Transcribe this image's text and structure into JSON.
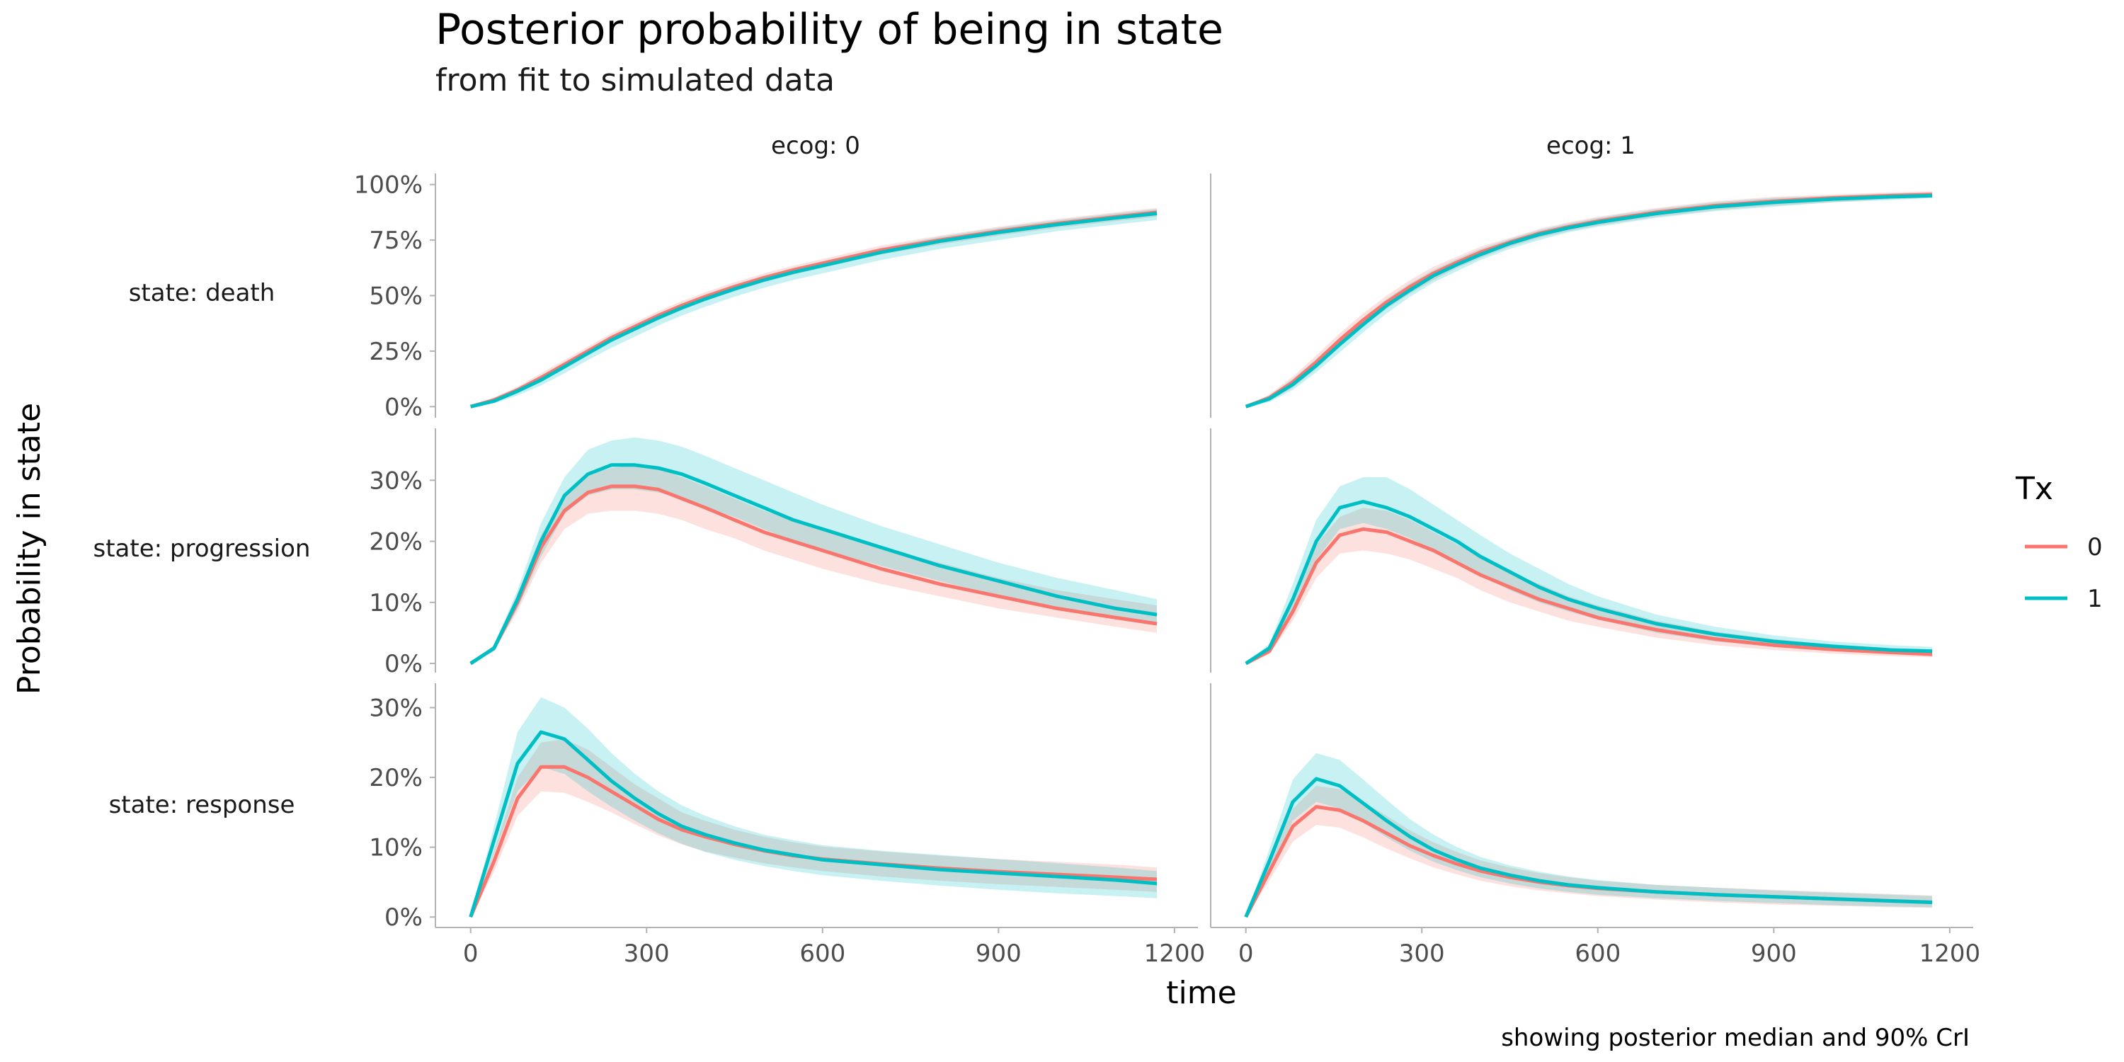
{
  "chart_data": {
    "type": "line",
    "title": "Posterior probability of being in state",
    "subtitle": "from fit to simulated data",
    "xlabel": "time",
    "ylabel": "Probability in state",
    "caption": "showing posterior median and 90% CrI",
    "xlim": [
      -60,
      1240
    ],
    "x_ticks": [
      0,
      300,
      600,
      900,
      1200
    ],
    "x_tick_labels": [
      "0",
      "300",
      "600",
      "900",
      "1200"
    ],
    "facet_cols": [
      "ecog: 0",
      "ecog: 1"
    ],
    "facet_rows": [
      {
        "label": "state: death",
        "ylim": [
          -0.05,
          1.05
        ],
        "y_ticks": [
          0,
          0.25,
          0.5,
          0.75,
          1.0
        ],
        "y_tick_labels": [
          "0%",
          "25%",
          "50%",
          "75%",
          "100%"
        ]
      },
      {
        "label": "state: progression",
        "ylim": [
          -0.015,
          0.385
        ],
        "y_ticks": [
          0,
          0.1,
          0.2,
          0.3
        ],
        "y_tick_labels": [
          "0%",
          "10%",
          "20%",
          "30%"
        ]
      },
      {
        "label": "state: response",
        "ylim": [
          -0.015,
          0.335
        ],
        "y_ticks": [
          0,
          0.1,
          0.2,
          0.3
        ],
        "y_tick_labels": [
          "0%",
          "10%",
          "20%",
          "30%"
        ]
      }
    ],
    "legend": {
      "title": "Tx",
      "position": "right",
      "entries": [
        {
          "label": "0",
          "color": "#F8766D"
        },
        {
          "label": "1",
          "color": "#00BFC4"
        }
      ]
    },
    "x": [
      0,
      40,
      80,
      120,
      160,
      200,
      240,
      280,
      320,
      360,
      400,
      450,
      500,
      550,
      600,
      700,
      800,
      900,
      1000,
      1100,
      1170
    ],
    "panels": [
      {
        "row": 0,
        "col": 0,
        "series": [
          {
            "tx": "0",
            "median": [
              0,
              0.03,
              0.075,
              0.13,
              0.19,
              0.25,
              0.31,
              0.36,
              0.41,
              0.455,
              0.495,
              0.54,
              0.58,
              0.615,
              0.645,
              0.705,
              0.75,
              0.79,
              0.825,
              0.855,
              0.875
            ],
            "lower": [
              0,
              0.02,
              0.06,
              0.11,
              0.17,
              0.23,
              0.29,
              0.34,
              0.39,
              0.435,
              0.475,
              0.52,
              0.56,
              0.595,
              0.625,
              0.685,
              0.73,
              0.77,
              0.805,
              0.835,
              0.855
            ],
            "upper": [
              0,
              0.04,
              0.09,
              0.15,
              0.21,
              0.27,
              0.33,
              0.38,
              0.43,
              0.475,
              0.515,
              0.56,
              0.6,
              0.635,
              0.665,
              0.725,
              0.77,
              0.81,
              0.845,
              0.875,
              0.895
            ]
          },
          {
            "tx": "1",
            "median": [
              0,
              0.025,
              0.07,
              0.12,
              0.18,
              0.24,
              0.3,
              0.35,
              0.4,
              0.445,
              0.485,
              0.53,
              0.57,
              0.605,
              0.635,
              0.695,
              0.745,
              0.785,
              0.82,
              0.85,
              0.87
            ],
            "lower": [
              0,
              0.015,
              0.05,
              0.095,
              0.15,
              0.21,
              0.265,
              0.315,
              0.365,
              0.41,
              0.45,
              0.495,
              0.535,
              0.57,
              0.6,
              0.66,
              0.71,
              0.75,
              0.79,
              0.82,
              0.84
            ],
            "upper": [
              0,
              0.035,
              0.085,
              0.14,
              0.2,
              0.26,
              0.32,
              0.37,
              0.42,
              0.465,
              0.505,
              0.55,
              0.59,
              0.625,
              0.655,
              0.715,
              0.765,
              0.805,
              0.84,
              0.87,
              0.89
            ]
          }
        ]
      },
      {
        "row": 0,
        "col": 1,
        "series": [
          {
            "tx": "0",
            "median": [
              0,
              0.04,
              0.11,
              0.2,
              0.3,
              0.39,
              0.47,
              0.54,
              0.6,
              0.65,
              0.695,
              0.74,
              0.78,
              0.81,
              0.835,
              0.875,
              0.905,
              0.925,
              0.94,
              0.95,
              0.955
            ],
            "lower": [
              0,
              0.025,
              0.085,
              0.17,
              0.27,
              0.36,
              0.44,
              0.51,
              0.57,
              0.625,
              0.67,
              0.72,
              0.76,
              0.79,
              0.815,
              0.855,
              0.885,
              0.905,
              0.92,
              0.935,
              0.94
            ],
            "upper": [
              0,
              0.055,
              0.135,
              0.23,
              0.33,
              0.42,
              0.5,
              0.57,
              0.63,
              0.675,
              0.72,
              0.76,
              0.8,
              0.83,
              0.855,
              0.895,
              0.925,
              0.945,
              0.955,
              0.965,
              0.97
            ]
          },
          {
            "tx": "1",
            "median": [
              0,
              0.035,
              0.1,
              0.185,
              0.28,
              0.37,
              0.455,
              0.525,
              0.59,
              0.64,
              0.685,
              0.735,
              0.775,
              0.805,
              0.83,
              0.87,
              0.9,
              0.92,
              0.935,
              0.945,
              0.95
            ],
            "lower": [
              0,
              0.02,
              0.075,
              0.155,
              0.245,
              0.335,
              0.42,
              0.495,
              0.56,
              0.61,
              0.66,
              0.71,
              0.75,
              0.785,
              0.81,
              0.85,
              0.88,
              0.9,
              0.92,
              0.93,
              0.94
            ],
            "upper": [
              0,
              0.05,
              0.125,
              0.215,
              0.31,
              0.4,
              0.485,
              0.555,
              0.615,
              0.665,
              0.71,
              0.755,
              0.795,
              0.825,
              0.85,
              0.89,
              0.92,
              0.94,
              0.95,
              0.96,
              0.965
            ]
          }
        ]
      },
      {
        "row": 1,
        "col": 0,
        "series": [
          {
            "tx": "0",
            "median": [
              0,
              0.025,
              0.1,
              0.19,
              0.25,
              0.28,
              0.29,
              0.29,
              0.285,
              0.27,
              0.255,
              0.235,
              0.215,
              0.2,
              0.185,
              0.155,
              0.13,
              0.11,
              0.09,
              0.075,
              0.065
            ],
            "lower": [
              0,
              0.02,
              0.085,
              0.165,
              0.22,
              0.245,
              0.25,
              0.25,
              0.245,
              0.235,
              0.22,
              0.205,
              0.185,
              0.17,
              0.155,
              0.13,
              0.11,
              0.09,
              0.075,
              0.06,
              0.05
            ],
            "upper": [
              0,
              0.03,
              0.115,
              0.21,
              0.275,
              0.31,
              0.32,
              0.325,
              0.32,
              0.305,
              0.29,
              0.27,
              0.25,
              0.235,
              0.22,
              0.19,
              0.165,
              0.14,
              0.12,
              0.105,
              0.095
            ]
          },
          {
            "tx": "1",
            "median": [
              0,
              0.025,
              0.105,
              0.2,
              0.275,
              0.31,
              0.325,
              0.325,
              0.32,
              0.31,
              0.295,
              0.275,
              0.255,
              0.235,
              0.22,
              0.19,
              0.16,
              0.135,
              0.11,
              0.09,
              0.08
            ],
            "lower": [
              0,
              0.02,
              0.09,
              0.175,
              0.245,
              0.275,
              0.285,
              0.285,
              0.28,
              0.27,
              0.255,
              0.24,
              0.22,
              0.2,
              0.185,
              0.16,
              0.135,
              0.11,
              0.09,
              0.075,
              0.065
            ],
            "upper": [
              0,
              0.03,
              0.12,
              0.23,
              0.305,
              0.35,
              0.365,
              0.37,
              0.365,
              0.355,
              0.34,
              0.32,
              0.3,
              0.28,
              0.26,
              0.225,
              0.195,
              0.165,
              0.14,
              0.12,
              0.105
            ]
          }
        ]
      },
      {
        "row": 1,
        "col": 1,
        "series": [
          {
            "tx": "0",
            "median": [
              0,
              0.02,
              0.085,
              0.165,
              0.21,
              0.22,
              0.215,
              0.2,
              0.185,
              0.165,
              0.145,
              0.125,
              0.105,
              0.09,
              0.075,
              0.055,
              0.04,
              0.03,
              0.023,
              0.018,
              0.015
            ],
            "lower": [
              0,
              0.015,
              0.07,
              0.14,
              0.18,
              0.185,
              0.18,
              0.17,
              0.155,
              0.14,
              0.12,
              0.1,
              0.085,
              0.07,
              0.06,
              0.042,
              0.03,
              0.022,
              0.016,
              0.012,
              0.01
            ],
            "upper": [
              0,
              0.028,
              0.105,
              0.195,
              0.24,
              0.255,
              0.25,
              0.235,
              0.215,
              0.195,
              0.175,
              0.15,
              0.13,
              0.11,
              0.095,
              0.07,
              0.052,
              0.04,
              0.031,
              0.025,
              0.022
            ]
          },
          {
            "tx": "1",
            "median": [
              0,
              0.025,
              0.105,
              0.2,
              0.255,
              0.265,
              0.255,
              0.24,
              0.22,
              0.2,
              0.175,
              0.15,
              0.125,
              0.105,
              0.09,
              0.065,
              0.048,
              0.036,
              0.028,
              0.022,
              0.02
            ],
            "lower": [
              0,
              0.02,
              0.085,
              0.17,
              0.22,
              0.23,
              0.22,
              0.205,
              0.185,
              0.165,
              0.145,
              0.12,
              0.1,
              0.085,
              0.072,
              0.05,
              0.036,
              0.027,
              0.02,
              0.016,
              0.014
            ],
            "upper": [
              0,
              0.032,
              0.13,
              0.235,
              0.29,
              0.305,
              0.305,
              0.285,
              0.26,
              0.235,
              0.21,
              0.18,
              0.155,
              0.13,
              0.11,
              0.08,
              0.06,
              0.046,
              0.036,
              0.03,
              0.027
            ]
          }
        ]
      },
      {
        "row": 2,
        "col": 0,
        "series": [
          {
            "tx": "0",
            "median": [
              0,
              0.08,
              0.17,
              0.215,
              0.215,
              0.2,
              0.18,
              0.16,
              0.14,
              0.125,
              0.115,
              0.104,
              0.095,
              0.088,
              0.083,
              0.076,
              0.07,
              0.065,
              0.061,
              0.057,
              0.054
            ],
            "lower": [
              0,
              0.065,
              0.145,
              0.18,
              0.178,
              0.165,
              0.15,
              0.133,
              0.117,
              0.104,
              0.094,
              0.085,
              0.077,
              0.071,
              0.066,
              0.058,
              0.052,
              0.047,
              0.043,
              0.039,
              0.036
            ],
            "upper": [
              0,
              0.095,
              0.2,
              0.25,
              0.255,
              0.24,
              0.215,
              0.19,
              0.17,
              0.15,
              0.138,
              0.125,
              0.115,
              0.107,
              0.101,
              0.094,
              0.088,
              0.083,
              0.079,
              0.075,
              0.071
            ]
          },
          {
            "tx": "1",
            "median": [
              0,
              0.11,
              0.22,
              0.265,
              0.255,
              0.225,
              0.195,
              0.17,
              0.148,
              0.13,
              0.118,
              0.106,
              0.096,
              0.089,
              0.082,
              0.075,
              0.068,
              0.063,
              0.058,
              0.053,
              0.048
            ],
            "lower": [
              0,
              0.09,
              0.18,
              0.215,
              0.205,
              0.18,
              0.158,
              0.138,
              0.12,
              0.105,
              0.093,
              0.082,
              0.073,
              0.066,
              0.06,
              0.052,
              0.045,
              0.039,
              0.034,
              0.03,
              0.027
            ],
            "upper": [
              0,
              0.13,
              0.265,
              0.315,
              0.3,
              0.27,
              0.235,
              0.205,
              0.18,
              0.16,
              0.145,
              0.13,
              0.118,
              0.11,
              0.103,
              0.095,
              0.089,
              0.083,
              0.077,
              0.071,
              0.066
            ]
          }
        ]
      },
      {
        "row": 2,
        "col": 1,
        "series": [
          {
            "tx": "0",
            "median": [
              0,
              0.065,
              0.13,
              0.158,
              0.153,
              0.138,
              0.12,
              0.102,
              0.088,
              0.076,
              0.066,
              0.057,
              0.05,
              0.045,
              0.041,
              0.036,
              0.032,
              0.029,
              0.026,
              0.023,
              0.021
            ],
            "lower": [
              0,
              0.052,
              0.108,
              0.132,
              0.128,
              0.114,
              0.098,
              0.084,
              0.071,
              0.061,
              0.052,
              0.044,
              0.038,
              0.034,
              0.03,
              0.025,
              0.021,
              0.018,
              0.016,
              0.014,
              0.013
            ],
            "upper": [
              0,
              0.078,
              0.155,
              0.188,
              0.183,
              0.165,
              0.145,
              0.124,
              0.107,
              0.093,
              0.081,
              0.071,
              0.063,
              0.057,
              0.052,
              0.046,
              0.042,
              0.039,
              0.036,
              0.033,
              0.031
            ]
          },
          {
            "tx": "1",
            "median": [
              0,
              0.08,
              0.165,
              0.198,
              0.188,
              0.163,
              0.138,
              0.115,
              0.096,
              0.082,
              0.07,
              0.06,
              0.052,
              0.046,
              0.042,
              0.036,
              0.032,
              0.029,
              0.026,
              0.023,
              0.021
            ],
            "lower": [
              0,
              0.065,
              0.138,
              0.165,
              0.155,
              0.135,
              0.114,
              0.095,
              0.079,
              0.067,
              0.057,
              0.048,
              0.041,
              0.036,
              0.032,
              0.027,
              0.023,
              0.02,
              0.017,
              0.015,
              0.014
            ],
            "upper": [
              0,
              0.097,
              0.197,
              0.235,
              0.225,
              0.197,
              0.168,
              0.14,
              0.118,
              0.1,
              0.086,
              0.074,
              0.065,
              0.058,
              0.053,
              0.046,
              0.042,
              0.038,
              0.035,
              0.032,
              0.03
            ]
          }
        ]
      }
    ]
  }
}
